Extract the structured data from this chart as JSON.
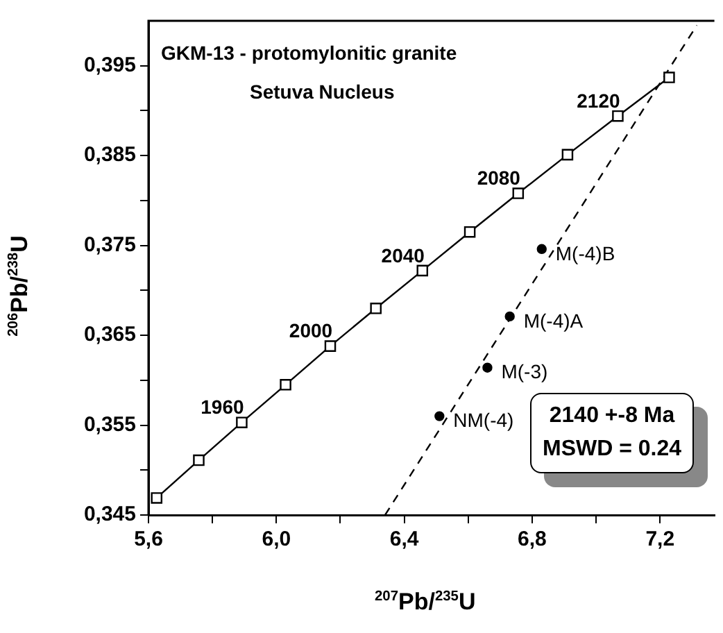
{
  "chart_data": {
    "type": "line",
    "title": "GKM-13 -  protomylonitic granite",
    "subtitle": "Setuva Nucleus",
    "xlabel": "$^{207}$Pb/$^{235}$U",
    "ylabel": "$^{206}$Pb/$^{238}$U",
    "xlim": [
      5.6,
      7.37
    ],
    "ylim": [
      0.345,
      0.4
    ],
    "xticks": [
      {
        "value": 5.6,
        "label": "5,6"
      },
      {
        "value": 5.8,
        "label": null
      },
      {
        "value": 6.0,
        "label": "6,0"
      },
      {
        "value": 6.2,
        "label": null
      },
      {
        "value": 6.4,
        "label": "6,4"
      },
      {
        "value": 6.6,
        "label": null
      },
      {
        "value": 6.8,
        "label": "6,8"
      },
      {
        "value": 7.0,
        "label": null
      },
      {
        "value": 7.2,
        "label": "7,2"
      }
    ],
    "yticks": [
      {
        "value": 0.345,
        "label": "0,345"
      },
      {
        "value": 0.35,
        "label": null
      },
      {
        "value": 0.355,
        "label": "0,355"
      },
      {
        "value": 0.36,
        "label": null
      },
      {
        "value": 0.365,
        "label": "0,365"
      },
      {
        "value": 0.37,
        "label": null
      },
      {
        "value": 0.375,
        "label": "0,375"
      },
      {
        "value": 0.38,
        "label": null
      },
      {
        "value": 0.385,
        "label": "0,385"
      },
      {
        "value": 0.39,
        "label": null
      },
      {
        "value": 0.395,
        "label": "0,395"
      }
    ],
    "grid": false,
    "legend": false,
    "series": [
      {
        "color": "#000000",
        "marker": "square",
        "line_style": "solid",
        "x": [
          5.6255,
          5.7573,
          5.8917,
          6.0288,
          6.1686,
          6.3112,
          6.4567,
          6.605,
          6.7563,
          6.9106,
          7.068,
          7.2285
        ],
        "values": [
          0.3469,
          0.3511,
          0.3553,
          0.3595,
          0.3638,
          0.368,
          0.3722,
          0.3765,
          0.3808,
          0.3851,
          0.3894,
          0.3937
        ]
      },
      {
        "color": "#000000",
        "marker": "none",
        "line_style": "dashed",
        "x": [
          6.34,
          7.315
        ],
        "values": [
          0.345,
          0.3995
        ]
      },
      {
        "type": "scatter",
        "color": "#000000",
        "marker": "circle",
        "x": [
          6.51,
          6.66,
          6.73,
          6.83
        ],
        "values": [
          0.356,
          0.3614,
          0.3671,
          0.3746
        ]
      }
    ],
    "annotations": [
      {
        "text": "1960",
        "x": 5.8917,
        "y": 0.3553
      },
      {
        "text": "2000",
        "x": 6.1686,
        "y": 0.3638
      },
      {
        "text": "2040",
        "x": 6.4567,
        "y": 0.3722
      },
      {
        "text": "2080",
        "x": 6.7563,
        "y": 0.3808
      },
      {
        "text": "2120",
        "x": 7.068,
        "y": 0.3894
      },
      {
        "text": "NM(-4)",
        "x": 6.51,
        "y": 0.356
      },
      {
        "text": "M(-3)",
        "x": 6.66,
        "y": 0.3614
      },
      {
        "text": "M(-4)A",
        "x": 6.73,
        "y": 0.3671
      },
      {
        "text": "M(-4)B",
        "x": 6.83,
        "y": 0.3746
      },
      "2140  +-8 Ma",
      "MSWD = 0.24"
    ]
  }
}
